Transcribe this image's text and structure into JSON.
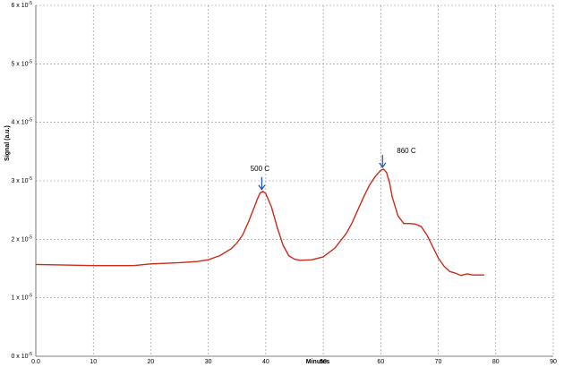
{
  "chart_data": {
    "type": "line",
    "title": "",
    "xlabel": "Minutes",
    "ylabel": "Signal (a.u.)",
    "xlim": [
      0,
      90
    ],
    "ylim": [
      0,
      6
    ],
    "grid": true,
    "x_ticks": [
      {
        "value": 0,
        "label": "0.0"
      },
      {
        "value": 10,
        "label": "10"
      },
      {
        "value": 20,
        "label": "20"
      },
      {
        "value": 30,
        "label": "30"
      },
      {
        "value": 40,
        "label": "40"
      },
      {
        "value": 50,
        "label": "50"
      },
      {
        "value": 60,
        "label": "60"
      },
      {
        "value": 70,
        "label": "70"
      },
      {
        "value": 80,
        "label": "80"
      },
      {
        "value": 90,
        "label": "90"
      }
    ],
    "y_ticks": [
      {
        "value": 0,
        "label": "0 x 10",
        "exp": "-5"
      },
      {
        "value": 1,
        "label": "1 x 10",
        "exp": "-5"
      },
      {
        "value": 2,
        "label": "2 x 10",
        "exp": "-5"
      },
      {
        "value": 3,
        "label": "3 x 10",
        "exp": "-5"
      },
      {
        "value": 4,
        "label": "4 x 10",
        "exp": "-5"
      },
      {
        "value": 5,
        "label": "5 x 10",
        "exp": "-5"
      },
      {
        "value": 6,
        "label": "6 x 10",
        "exp": "-5"
      }
    ],
    "series": [
      {
        "color": "#cc2a1a",
        "x": [
          0,
          5,
          10,
          15,
          17,
          20,
          25,
          28,
          30,
          32,
          34,
          35,
          36,
          37,
          38,
          38.5,
          39,
          39.5,
          40,
          41,
          42,
          43,
          44,
          45,
          46,
          48,
          50,
          52,
          54,
          55,
          56,
          57,
          58,
          59,
          60,
          60.5,
          61,
          61.5,
          62,
          63,
          64,
          65,
          66,
          67,
          68,
          69,
          70,
          71,
          72,
          73,
          74,
          75,
          76,
          77,
          78
        ],
        "y": [
          1.57,
          1.56,
          1.55,
          1.55,
          1.55,
          1.58,
          1.6,
          1.62,
          1.65,
          1.72,
          1.84,
          1.94,
          2.08,
          2.3,
          2.55,
          2.68,
          2.79,
          2.82,
          2.78,
          2.55,
          2.2,
          1.9,
          1.72,
          1.66,
          1.64,
          1.65,
          1.7,
          1.85,
          2.1,
          2.28,
          2.5,
          2.72,
          2.92,
          3.07,
          3.18,
          3.2,
          3.14,
          2.98,
          2.72,
          2.4,
          2.27,
          2.27,
          2.26,
          2.22,
          2.08,
          1.88,
          1.68,
          1.54,
          1.45,
          1.42,
          1.38,
          1.41,
          1.39,
          1.39,
          1.39
        ]
      }
    ],
    "annotations": [
      {
        "text": "500 C",
        "x": 39.3,
        "y": 2.82
      },
      {
        "text": "860 C",
        "x": 60.3,
        "y": 3.2
      }
    ],
    "colors": {
      "line": "#cc2a1a",
      "arrow": "#1a4fbf",
      "grid": "#8a8a8a"
    }
  }
}
